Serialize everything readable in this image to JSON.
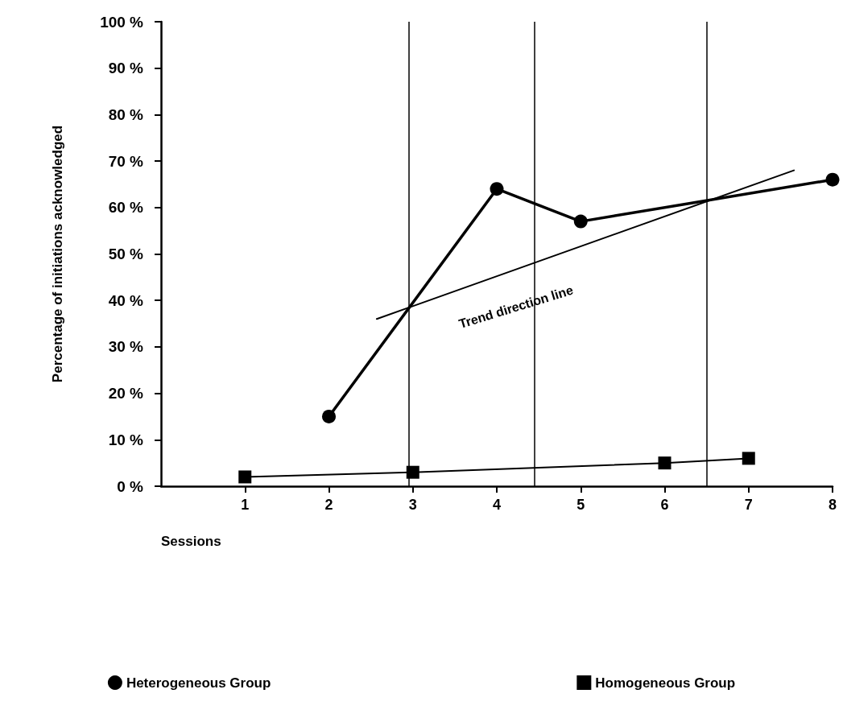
{
  "chart_data": {
    "type": "line",
    "xlabel": "Sessions",
    "ylabel": "Percentage of initiations acknowledged",
    "x": [
      1,
      2,
      3,
      4,
      5,
      6,
      7,
      8
    ],
    "series": [
      {
        "name": "Heterogeneous Group",
        "color": "#000000",
        "marker": "circle",
        "values": [
          null,
          15,
          null,
          64,
          57,
          null,
          null,
          66
        ]
      },
      {
        "name": "Homogeneous Group",
        "color": "#000000",
        "marker": "square",
        "values": [
          2,
          null,
          3,
          null,
          null,
          5,
          6,
          null
        ]
      },
      {
        "type": "line",
        "color": "#000000",
        "marker": "none",
        "x": [
          2.57,
          7.54
        ],
        "values": [
          36,
          68
        ]
      }
    ],
    "ref_lines": [
      {
        "axis": "x",
        "value": 2.95,
        "color": "#000000"
      },
      {
        "axis": "x",
        "value": 4.45,
        "color": "#000000"
      },
      {
        "axis": "x",
        "value": 6.5,
        "color": "#000000"
      }
    ],
    "annotations": [
      "Trend direction line"
    ],
    "xlim": [
      0,
      8
    ],
    "xticks": [
      1,
      2,
      3,
      4,
      5,
      6,
      7,
      8
    ],
    "ylim": [
      0,
      100
    ],
    "yticks": [
      {
        "value": 0,
        "label": "0 %"
      },
      {
        "value": 10,
        "label": "10 %"
      },
      {
        "value": 20,
        "label": "20 %"
      },
      {
        "value": 30,
        "label": "30 %"
      },
      {
        "value": 40,
        "label": "40 %"
      },
      {
        "value": 50,
        "label": "50 %"
      },
      {
        "value": 60,
        "label": "60 %"
      },
      {
        "value": 70,
        "label": "70 %"
      },
      {
        "value": 80,
        "label": "80 %"
      },
      {
        "value": 90,
        "label": "90 %"
      },
      {
        "value": 100,
        "label": "100 %"
      }
    ],
    "grid": false,
    "legend": "bottom",
    "line_style": "solid"
  }
}
